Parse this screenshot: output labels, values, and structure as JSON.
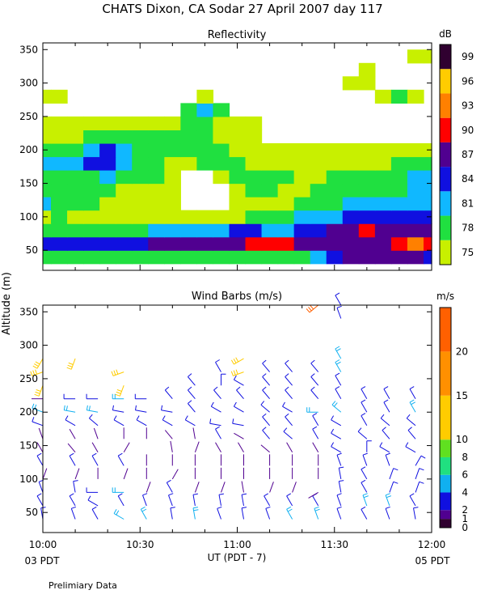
{
  "title": "CHATS Dixon, CA  Sodar  27 April 2007  day 117",
  "footer_note": "Prelimiary Data",
  "ylabel": "Altitude  (m)",
  "xlabel": "UT  (PDT - 7)",
  "x_left_sub": "03 PDT",
  "x_right_sub": "05 PDT",
  "x_ticks": [
    "10:00",
    "10:30",
    "11:00",
    "11:30",
    "12:00"
  ],
  "colors": {
    "refl": [
      "#c8f000",
      "#20e040",
      "#10b8ff",
      "#1010e0",
      "#500090",
      "#ff0000",
      "#ff8000",
      "#ffcc00",
      "#300030"
    ],
    "wind": [
      "#300030",
      "#500090",
      "#1010e0",
      "#10b0f0",
      "#20e080",
      "#60e020",
      "#ffcc00",
      "#ff9000",
      "#ff6000",
      "#ff0000"
    ]
  },
  "chart_data": [
    {
      "type": "heatmap",
      "title": "Reflectivity",
      "units": "dB",
      "xlim": [
        "10:00",
        "12:00"
      ],
      "ylim": [
        20,
        360
      ],
      "yticks": [
        50,
        100,
        150,
        200,
        250,
        300,
        350
      ],
      "colorbar_labels": [
        "75",
        "78",
        "81",
        "84",
        "87",
        "90",
        "93",
        "96",
        "99"
      ],
      "colorbar_values": [
        75,
        78,
        81,
        84,
        87,
        90,
        93,
        96,
        99
      ],
      "times": [
        "10:00",
        "10:05",
        "10:10",
        "10:15",
        "10:20",
        "10:25",
        "10:30",
        "10:35",
        "10:40",
        "10:45",
        "10:50",
        "10:55",
        "11:00",
        "11:05",
        "11:10",
        "11:15",
        "11:20",
        "11:25",
        "11:30",
        "11:35",
        "11:40",
        "11:45",
        "11:50",
        "11:55",
        "12:00"
      ],
      "altitudes": [
        40,
        60,
        80,
        100,
        120,
        140,
        160,
        180,
        200,
        220,
        240,
        260,
        280,
        300,
        320,
        340
      ],
      "values": [
        [
          78,
          78,
          78,
          78,
          78,
          78,
          78,
          78,
          78,
          78,
          78,
          78,
          78,
          78,
          78,
          78,
          78,
          81,
          84,
          87,
          87,
          87,
          87,
          87,
          84
        ],
        [
          84,
          84,
          84,
          84,
          84,
          84,
          84,
          87,
          87,
          87,
          87,
          87,
          87,
          90,
          91,
          90,
          87,
          87,
          87,
          87,
          87,
          87,
          90,
          93,
          90
        ],
        [
          78,
          78,
          78,
          78,
          78,
          78,
          78,
          81,
          81,
          81,
          81,
          81,
          84,
          84,
          81,
          81,
          84,
          84,
          87,
          87,
          90,
          87,
          87,
          87,
          87
        ],
        [
          75,
          78,
          75,
          75,
          75,
          75,
          75,
          75,
          75,
          75,
          75,
          75,
          75,
          78,
          78,
          78,
          81,
          81,
          81,
          84,
          84,
          84,
          84,
          84,
          84
        ],
        [
          81,
          78,
          78,
          78,
          75,
          75,
          75,
          75,
          75,
          0,
          0,
          0,
          75,
          75,
          75,
          75,
          78,
          78,
          78,
          81,
          81,
          81,
          81,
          81,
          81
        ],
        [
          78,
          78,
          78,
          78,
          78,
          75,
          75,
          75,
          75,
          0,
          0,
          0,
          75,
          78,
          78,
          75,
          75,
          78,
          78,
          78,
          78,
          78,
          78,
          81,
          81
        ],
        [
          78,
          78,
          78,
          78,
          81,
          78,
          78,
          78,
          75,
          0,
          0,
          75,
          78,
          78,
          78,
          78,
          75,
          75,
          78,
          78,
          78,
          78,
          78,
          81,
          81
        ],
        [
          81,
          81,
          81,
          84,
          84,
          81,
          78,
          78,
          75,
          75,
          78,
          78,
          78,
          75,
          75,
          75,
          75,
          75,
          75,
          75,
          75,
          75,
          78,
          78,
          78
        ],
        [
          78,
          78,
          78,
          81,
          84,
          81,
          78,
          78,
          78,
          78,
          78,
          78,
          75,
          75,
          75,
          75,
          75,
          75,
          75,
          75,
          75,
          75,
          75,
          75,
          75
        ],
        [
          75,
          75,
          75,
          78,
          78,
          78,
          78,
          78,
          78,
          78,
          78,
          75,
          75,
          75,
          0,
          0,
          0,
          0,
          0,
          0,
          0,
          0,
          0,
          0,
          0
        ],
        [
          75,
          75,
          75,
          75,
          75,
          75,
          75,
          75,
          75,
          78,
          78,
          75,
          75,
          75,
          0,
          0,
          0,
          0,
          0,
          0,
          0,
          0,
          0,
          0,
          0
        ],
        [
          0,
          0,
          0,
          0,
          0,
          0,
          0,
          0,
          0,
          78,
          81,
          78,
          0,
          0,
          0,
          0,
          0,
          0,
          0,
          0,
          0,
          0,
          0,
          0,
          0
        ],
        [
          75,
          75,
          0,
          0,
          0,
          0,
          0,
          0,
          0,
          0,
          75,
          0,
          0,
          0,
          0,
          0,
          0,
          0,
          0,
          0,
          0,
          75,
          78,
          75,
          0
        ],
        [
          0,
          0,
          0,
          0,
          0,
          0,
          0,
          0,
          0,
          0,
          0,
          0,
          0,
          0,
          0,
          0,
          0,
          0,
          0,
          75,
          75,
          0,
          0,
          0,
          0
        ],
        [
          0,
          0,
          0,
          0,
          0,
          0,
          0,
          0,
          0,
          0,
          0,
          0,
          0,
          0,
          0,
          0,
          0,
          0,
          0,
          0,
          75,
          0,
          0,
          0,
          0
        ],
        [
          0,
          0,
          0,
          0,
          0,
          0,
          0,
          0,
          0,
          0,
          0,
          0,
          0,
          0,
          0,
          0,
          0,
          0,
          0,
          0,
          0,
          0,
          0,
          75,
          75
        ]
      ]
    },
    {
      "type": "scatter",
      "title": "Wind Barbs (m/s)",
      "units": "m/s",
      "xlim": [
        "10:00",
        "12:00"
      ],
      "ylim": [
        20,
        360
      ],
      "yticks": [
        50,
        100,
        150,
        200,
        250,
        300,
        350
      ],
      "colorbar_labels": [
        "0",
        "1",
        "2",
        "4",
        "6",
        "8",
        "10",
        "15",
        "20"
      ],
      "colorbar_bounds": [
        0,
        1,
        2,
        4,
        6,
        8,
        10,
        15,
        20,
        25
      ],
      "times": [
        "10:00",
        "10:10",
        "10:17",
        "10:25",
        "10:32",
        "10:40",
        "10:47",
        "10:55",
        "11:02",
        "11:10",
        "11:17",
        "11:25",
        "11:32",
        "11:40",
        "11:47",
        "11:55"
      ],
      "altitudes": [
        40,
        60,
        80,
        100,
        120,
        140,
        160,
        180,
        200,
        220,
        240,
        260,
        280,
        340,
        360
      ],
      "speeds": [
        [
          3,
          3,
          3,
          4,
          4,
          3,
          4,
          3,
          3,
          3,
          4,
          4,
          3,
          3,
          3,
          3
        ],
        [
          3,
          3,
          3,
          3,
          3,
          3,
          3,
          3,
          3,
          3,
          3,
          3,
          3,
          4,
          4,
          3
        ],
        [
          2,
          2,
          2,
          5,
          1,
          2,
          1,
          1,
          1,
          1,
          1,
          1,
          2,
          2,
          2,
          2
        ],
        [
          1,
          1,
          1,
          1,
          1,
          1,
          1,
          1,
          1,
          1,
          1,
          1,
          2,
          2,
          2,
          2
        ],
        [
          2,
          2,
          2,
          2,
          1,
          1,
          1,
          1,
          1,
          1,
          1,
          1,
          2,
          2,
          2,
          2
        ],
        [
          1,
          1,
          1,
          1,
          0,
          1,
          1,
          1,
          1,
          1,
          1,
          1,
          2,
          2,
          2,
          3
        ],
        [
          1,
          1,
          1,
          1,
          1,
          1,
          1,
          2,
          1,
          2,
          2,
          2,
          3,
          3,
          3,
          3
        ],
        [
          2,
          2,
          2,
          2,
          2,
          2,
          2,
          2,
          3,
          3,
          3,
          3,
          3,
          3,
          3,
          3
        ],
        [
          5,
          5,
          4,
          3,
          3,
          3,
          3,
          3,
          3,
          3,
          3,
          5,
          4,
          3,
          3,
          5
        ],
        [
          1,
          3,
          3,
          4,
          3,
          3,
          3,
          3,
          3,
          3,
          3,
          3,
          3,
          3,
          3,
          3
        ],
        [
          10,
          0,
          0,
          10,
          0,
          0,
          3,
          3,
          3,
          3,
          3,
          3,
          3,
          0,
          0,
          0
        ],
        [
          10,
          0,
          0,
          10,
          0,
          0,
          0,
          3,
          12,
          3,
          3,
          3,
          4,
          0,
          0,
          0
        ],
        [
          10,
          10,
          0,
          0,
          0,
          0,
          0,
          0,
          12,
          0,
          0,
          0,
          4,
          0,
          0,
          0
        ],
        [
          0,
          0,
          0,
          0,
          0,
          0,
          0,
          0,
          0,
          0,
          0,
          0,
          3,
          0,
          0,
          0
        ],
        [
          0,
          0,
          0,
          0,
          0,
          0,
          0,
          0,
          0,
          0,
          0,
          20,
          3,
          0,
          0,
          0
        ]
      ],
      "directions": [
        [
          350,
          340,
          330,
          300,
          330,
          350,
          350,
          340,
          350,
          340,
          330,
          340,
          340,
          330,
          340,
          350
        ],
        [
          330,
          330,
          300,
          330,
          340,
          340,
          350,
          350,
          350,
          330,
          330,
          330,
          340,
          340,
          340,
          330
        ],
        [
          340,
          350,
          270,
          270,
          20,
          330,
          20,
          20,
          350,
          20,
          20,
          240,
          350,
          330,
          20,
          20
        ],
        [
          20,
          20,
          0,
          20,
          0,
          30,
          0,
          0,
          0,
          0,
          0,
          0,
          350,
          330,
          20,
          20
        ],
        [
          330,
          330,
          330,
          330,
          0,
          0,
          0,
          0,
          0,
          0,
          0,
          0,
          340,
          340,
          340,
          30
        ],
        [
          330,
          320,
          330,
          30,
          0,
          350,
          20,
          330,
          330,
          310,
          330,
          330,
          300,
          0,
          300,
          300
        ],
        [
          340,
          330,
          340,
          0,
          0,
          320,
          350,
          330,
          300,
          320,
          310,
          330,
          300,
          310,
          320,
          320
        ],
        [
          290,
          300,
          310,
          300,
          300,
          300,
          300,
          280,
          280,
          320,
          320,
          330,
          300,
          330,
          310,
          310
        ],
        [
          290,
          280,
          280,
          280,
          280,
          280,
          320,
          300,
          300,
          310,
          300,
          270,
          310,
          330,
          330,
          330
        ],
        [
          270,
          270,
          270,
          270,
          270,
          320,
          320,
          320,
          320,
          320,
          320,
          320,
          330,
          330,
          330,
          330
        ],
        [
          200,
          0,
          0,
          200,
          0,
          0,
          320,
          0,
          300,
          320,
          320,
          320,
          330,
          0,
          0,
          0
        ],
        [
          250,
          0,
          0,
          250,
          0,
          0,
          0,
          330,
          250,
          320,
          320,
          320,
          330,
          0,
          0,
          0
        ],
        [
          210,
          200,
          0,
          0,
          0,
          0,
          0,
          0,
          240,
          0,
          0,
          0,
          330,
          0,
          0,
          0
        ],
        [
          0,
          0,
          0,
          0,
          0,
          0,
          0,
          0,
          0,
          0,
          0,
          0,
          340,
          0,
          0,
          0
        ],
        [
          0,
          0,
          0,
          0,
          0,
          0,
          0,
          0,
          0,
          0,
          0,
          230,
          330,
          0,
          0,
          0
        ]
      ]
    }
  ]
}
